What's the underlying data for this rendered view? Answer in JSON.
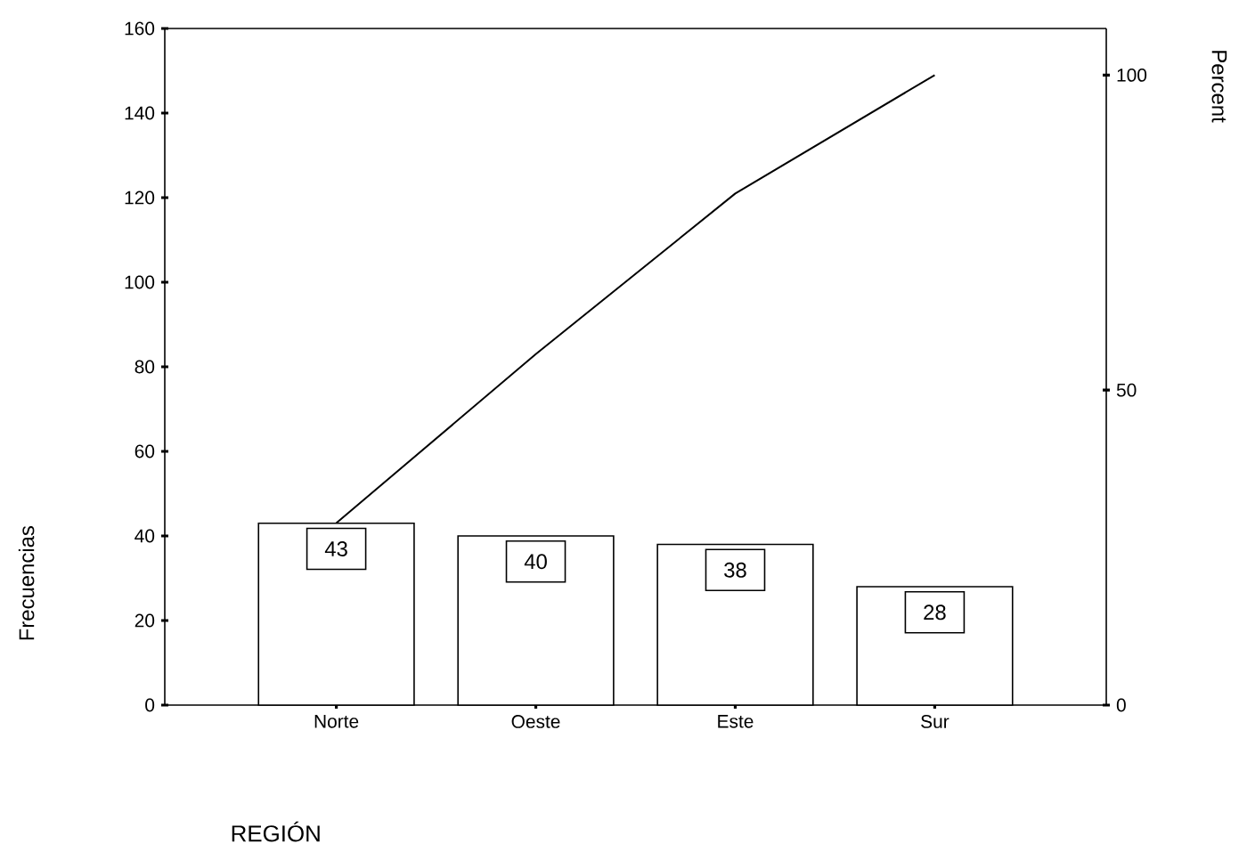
{
  "chart_data": {
    "type": "bar",
    "xlabel": "REGIÓN",
    "ylabel": "Frecuencias",
    "y2label": "Percent",
    "categories": [
      "Norte",
      "Oeste",
      "Este",
      "Sur"
    ],
    "ylim": [
      0,
      160
    ],
    "yticks": [
      0,
      20,
      40,
      60,
      80,
      100,
      120,
      140,
      160
    ],
    "y2lim": [
      0,
      107.4
    ],
    "y2ticks": [
      0,
      50,
      100
    ],
    "series": [
      {
        "color": "#ffffff",
        "values": [
          43,
          40,
          38,
          28
        ],
        "value_labels": [
          "43",
          "40",
          "38",
          "28"
        ]
      },
      {
        "type": "line",
        "axis": "y2",
        "color": "#000000",
        "values": [
          28.9,
          55.7,
          81.2,
          100
        ]
      }
    ]
  }
}
